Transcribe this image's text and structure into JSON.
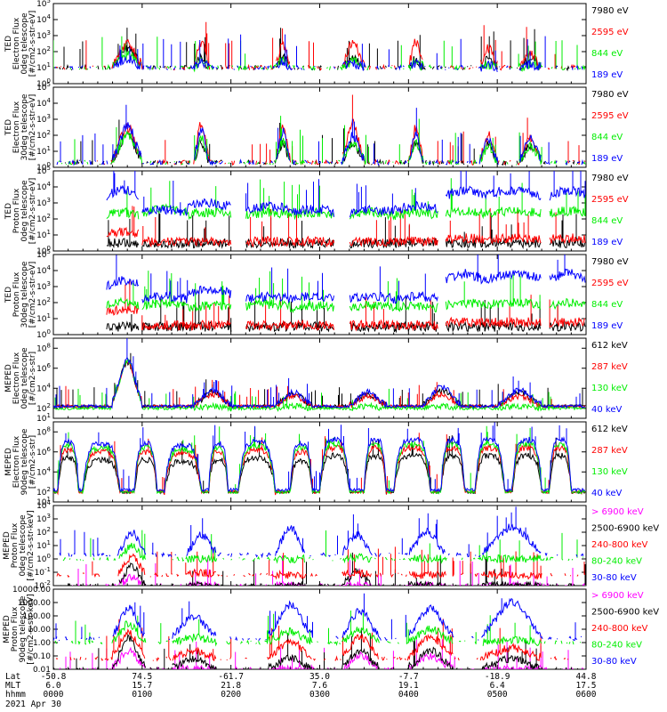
{
  "colors": {
    "black": "#000000",
    "red": "#ff0000",
    "green": "#00ee00",
    "blue": "#0000ff",
    "magenta": "#ff00ff"
  },
  "chart_data": [
    {
      "type": "line",
      "ylabel": [
        "TED",
        "Electron Flux",
        "0deg telescope",
        "[#/cm2-s-str-eV]"
      ],
      "yscale": "log",
      "ylim": [
        1,
        100000
      ],
      "yticks": [
        "10^0",
        "10^1",
        "10^2",
        "10^3",
        "10^4",
        "10^5"
      ],
      "legend": [
        {
          "label": "7980 eV",
          "color": "black"
        },
        {
          "label": "2595 eV",
          "color": "red"
        },
        {
          "label": "844 eV",
          "color": "green"
        },
        {
          "label": "189 eV",
          "color": "blue"
        }
      ],
      "profile": "ted_e",
      "series": [
        {
          "name": "7980 eV",
          "color": "black",
          "peak_log": [
            2.2,
            1.6,
            1.6,
            1.5,
            1.5,
            1.5,
            1.5,
            3.2
          ],
          "base_log": 1.0
        },
        {
          "name": "2595 eV",
          "color": "red",
          "peak_log": [
            2.5,
            2.6,
            2.4,
            2.6,
            2.6,
            2.2,
            1.8,
            3.8
          ],
          "base_log": 1.0
        },
        {
          "name": "844 eV",
          "color": "green",
          "peak_log": [
            1.8,
            1.5,
            1.5,
            1.4,
            1.4,
            1.2,
            1.2,
            2.6
          ],
          "base_log": 1.0
        },
        {
          "name": "189 eV",
          "color": "blue",
          "peak_log": [
            1.5,
            1.4,
            1.4,
            1.3,
            1.3,
            1.2,
            1.2,
            2.2
          ],
          "base_log": 1.0
        }
      ]
    },
    {
      "type": "line",
      "ylabel": [
        "TED",
        "Electron Flux",
        "30deg telescope",
        "[#/cm2-s-str-eV]"
      ],
      "yscale": "log",
      "ylim": [
        1,
        100000
      ],
      "yticks": [
        "10^0",
        "10^1",
        "10^2",
        "10^3",
        "10^4",
        "10^5"
      ],
      "legend": [
        {
          "label": "7980 eV",
          "color": "black"
        },
        {
          "label": "2595 eV",
          "color": "red"
        },
        {
          "label": "844 eV",
          "color": "green"
        },
        {
          "label": "189 eV",
          "color": "blue"
        }
      ],
      "profile": "ted_e",
      "series": [
        {
          "name": "7980 eV",
          "color": "black",
          "peak_log": [
            2.0,
            1.6,
            1.5,
            1.5,
            1.5,
            1.4,
            1.4,
            2.8
          ],
          "base_log": 0.3
        },
        {
          "name": "2595 eV",
          "color": "red",
          "peak_log": [
            2.5,
            2.8,
            2.6,
            2.7,
            2.5,
            2.0,
            1.8,
            3.5
          ],
          "base_log": 0.3
        },
        {
          "name": "844 eV",
          "color": "green",
          "peak_log": [
            2.0,
            1.8,
            1.7,
            1.6,
            1.6,
            1.3,
            1.3,
            2.6
          ],
          "base_log": 0.3
        },
        {
          "name": "189 eV",
          "color": "blue",
          "peak_log": [
            2.6,
            2.4,
            2.2,
            2.0,
            2.0,
            1.8,
            1.8,
            2.4
          ],
          "base_log": 0.3
        }
      ]
    },
    {
      "type": "line",
      "ylabel": [
        "TED",
        "Proton Flux",
        "0deg telescope",
        "[#/cm2-s-str-eV]"
      ],
      "yscale": "log",
      "ylim": [
        1,
        100000
      ],
      "yticks": [
        "10^0",
        "10^1",
        "10^2",
        "10^3",
        "10^4",
        "10^5"
      ],
      "legend": [
        {
          "label": "7980 eV",
          "color": "black"
        },
        {
          "label": "2595 eV",
          "color": "red"
        },
        {
          "label": "844 eV",
          "color": "green"
        },
        {
          "label": "189 eV",
          "color": "blue"
        }
      ],
      "profile": "ted_p",
      "series": [
        {
          "name": "7980 eV",
          "color": "black",
          "peak_log": [
            0.5,
            0.5,
            0.5,
            0.5,
            0.5,
            0.5,
            0.5,
            0.5
          ],
          "base_log": 0.3
        },
        {
          "name": "2595 eV",
          "color": "red",
          "peak_log": [
            1.2,
            0.6,
            0.6,
            0.6,
            0.6,
            0.6,
            0.6,
            0.8
          ],
          "base_log": 0.3
        },
        {
          "name": "844 eV",
          "color": "green",
          "peak_log": [
            2.4,
            2.6,
            2.4,
            2.4,
            2.4,
            2.4,
            2.4,
            2.5
          ],
          "base_log": 1.2
        },
        {
          "name": "189 eV",
          "color": "blue",
          "peak_log": [
            3.8,
            2.6,
            3.0,
            2.8,
            2.6,
            2.6,
            2.8,
            3.8
          ],
          "base_log": 1.2
        }
      ]
    },
    {
      "type": "line",
      "ylabel": [
        "TED",
        "Proton Flux",
        "30deg telescope",
        "[#/cm2-s-str-eV]"
      ],
      "yscale": "log",
      "ylim": [
        1,
        100000
      ],
      "yticks": [
        "10^0",
        "10^1",
        "10^2",
        "10^3",
        "10^4",
        "10^5"
      ],
      "legend": [
        {
          "label": "7980 eV",
          "color": "black"
        },
        {
          "label": "2595 eV",
          "color": "red"
        },
        {
          "label": "844 eV",
          "color": "green"
        },
        {
          "label": "189 eV",
          "color": "blue"
        }
      ],
      "profile": "ted_p",
      "series": [
        {
          "name": "7980 eV",
          "color": "black",
          "peak_log": [
            0.5,
            0.5,
            0.5,
            0.5,
            0.5,
            0.5,
            0.5,
            0.5
          ],
          "base_log": 0.3
        },
        {
          "name": "2595 eV",
          "color": "red",
          "peak_log": [
            1.6,
            0.6,
            0.6,
            0.6,
            0.6,
            0.6,
            0.6,
            0.8
          ],
          "base_log": 0.3
        },
        {
          "name": "844 eV",
          "color": "green",
          "peak_log": [
            2.0,
            2.0,
            1.8,
            1.9,
            1.8,
            1.8,
            1.8,
            2.0
          ],
          "base_log": 1.0
        },
        {
          "name": "189 eV",
          "color": "blue",
          "peak_log": [
            3.4,
            2.4,
            2.8,
            2.4,
            2.4,
            2.4,
            2.4,
            3.8
          ],
          "base_log": 1.0
        }
      ]
    },
    {
      "type": "line",
      "ylabel": [
        "MEPED",
        "Electron Flux",
        "0deg telescope",
        "[#/cm2-s-str]"
      ],
      "yscale": "log",
      "ylim": [
        10,
        1000000000
      ],
      "yticks": [
        "10^1",
        "10^2",
        "10^4",
        "10^6",
        "10^8"
      ],
      "legend": [
        {
          "label": "612 keV",
          "color": "black"
        },
        {
          "label": "287 keV",
          "color": "red"
        },
        {
          "label": "130 keV",
          "color": "green"
        },
        {
          "label": "40 keV",
          "color": "blue"
        }
      ],
      "profile": "mep_e0",
      "series": [
        {
          "name": "612 keV",
          "color": "black",
          "peak_log": [
            6.6,
            3.6,
            3.4,
            3.4,
            3.8,
            3.6,
            3.8,
            3.8
          ],
          "base_log": 2.2
        },
        {
          "name": "287 keV",
          "color": "red",
          "peak_log": [
            6.7,
            3.4,
            3.2,
            3.2,
            3.4,
            3.2,
            3.4,
            3.4
          ],
          "base_log": 2.2
        },
        {
          "name": "130 keV",
          "color": "green",
          "peak_log": [
            6.8,
            2.2,
            2.2,
            2.2,
            2.2,
            2.2,
            2.2,
            2.2
          ],
          "base_log": 2.0
        },
        {
          "name": "40 keV",
          "color": "blue",
          "peak_log": [
            6.9,
            3.8,
            3.6,
            3.6,
            4.2,
            3.8,
            4.0,
            5.0
          ],
          "base_log": 2.2
        }
      ]
    },
    {
      "type": "line",
      "ylabel": [
        "MEPED",
        "Electron Flux",
        "90deg telescope",
        "[#/cm2-s-str]"
      ],
      "yscale": "log",
      "ylim": [
        10,
        1000000000
      ],
      "yticks": [
        "10^1",
        "10^2",
        "10^4",
        "10^6",
        "10^8"
      ],
      "legend": [
        {
          "label": "612 keV",
          "color": "black"
        },
        {
          "label": "287 keV",
          "color": "red"
        },
        {
          "label": "130 keV",
          "color": "green"
        },
        {
          "label": "40 keV",
          "color": "blue"
        }
      ],
      "profile": "mep_e90",
      "series": [
        {
          "name": "612 keV",
          "color": "black",
          "peak_log": [
            5.4,
            5.2,
            5.2,
            5.0,
            5.2,
            5.4,
            5.0,
            5.6
          ],
          "base_log": 2.0
        },
        {
          "name": "287 keV",
          "color": "red",
          "peak_log": [
            6.2,
            6.0,
            6.0,
            5.8,
            6.0,
            6.2,
            6.0,
            6.4
          ],
          "base_log": 2.0
        },
        {
          "name": "130 keV",
          "color": "green",
          "peak_log": [
            6.6,
            6.4,
            6.4,
            6.2,
            6.4,
            6.6,
            6.4,
            6.8
          ],
          "base_log": 2.0
        },
        {
          "name": "40 keV",
          "color": "blue",
          "peak_log": [
            7.0,
            6.8,
            6.8,
            6.6,
            6.8,
            7.0,
            6.8,
            7.2
          ],
          "base_log": 2.2
        }
      ]
    },
    {
      "type": "line",
      "ylabel": [
        "MEPED",
        "Proton Flux",
        "0deg telescope",
        "[#/cm2-s-str-keV]"
      ],
      "yscale": "log",
      "ylim": [
        0.01,
        10000
      ],
      "yticks": [
        "10^-2",
        "10^-1",
        "10^0",
        "10^1",
        "10^2",
        "10^3",
        "10^4"
      ],
      "legend": [
        {
          "label": "> 6900 keV",
          "color": "magenta"
        },
        {
          "label": "2500-6900 keV",
          "color": "black"
        },
        {
          "label": "240-800 keV",
          "color": "red"
        },
        {
          "label": "80-240 keV",
          "color": "green"
        },
        {
          "label": "30-80 keV",
          "color": "blue"
        }
      ],
      "profile": "mep_p0",
      "series": [
        {
          "name": "> 6900 keV",
          "color": "magenta",
          "peak_log": [
            -1.4,
            -2,
            -2,
            -2,
            -2,
            -2,
            -1.4,
            -2
          ],
          "base_log": -2
        },
        {
          "name": "2500-6900 keV",
          "color": "black",
          "peak_log": [
            -0.5,
            -2,
            -2,
            -1.0,
            -2,
            -2,
            -0.8,
            -2
          ],
          "base_log": -2
        },
        {
          "name": "240-800 keV",
          "color": "red",
          "peak_log": [
            0.2,
            -1.0,
            -1.2,
            -1.0,
            -1.2,
            -1.2,
            -1.0,
            -1.0
          ],
          "base_log": -1.2
        },
        {
          "name": "80-240 keV",
          "color": "green",
          "peak_log": [
            0.9,
            0.0,
            0.0,
            0.1,
            0.0,
            0.0,
            0.4,
            0.6
          ],
          "base_log": 0.0
        },
        {
          "name": "30-80 keV",
          "color": "blue",
          "peak_log": [
            2.0,
            1.8,
            2.4,
            1.8,
            2.0,
            2.4,
            2.8,
            2.6
          ],
          "base_log": 0.3
        }
      ]
    },
    {
      "type": "line",
      "ylabel": [
        "MEPED",
        "Proton Flux",
        "90deg telescope",
        "[#/cm2-s-str-keV]"
      ],
      "yscale": "log",
      "ylim": [
        0.01,
        10000
      ],
      "yticks": [
        "0.01",
        "0.10",
        "1.00",
        "10.00",
        "100.00",
        "1000.00",
        "10000.00"
      ],
      "legend": [
        {
          "label": "> 6900 keV",
          "color": "magenta"
        },
        {
          "label": "2500-6900 keV",
          "color": "black"
        },
        {
          "label": "240-800 keV",
          "color": "red"
        },
        {
          "label": "80-240 keV",
          "color": "green"
        },
        {
          "label": "30-80 keV",
          "color": "blue"
        }
      ],
      "profile": "mep_p90",
      "series": [
        {
          "name": "> 6900 keV",
          "color": "magenta",
          "peak_log": [
            -0.6,
            -2,
            -2,
            -1.0,
            -1.0,
            -2,
            -0.8,
            -2
          ],
          "base_log": -2
        },
        {
          "name": "2500-6900 keV",
          "color": "black",
          "peak_log": [
            0.3,
            -1.2,
            -1.2,
            -0.6,
            -0.6,
            -1.2,
            -0.4,
            -1.0
          ],
          "base_log": -2
        },
        {
          "name": "240-800 keV",
          "color": "red",
          "peak_log": [
            0.8,
            -0.6,
            0.1,
            0.4,
            0.4,
            -0.4,
            0.6,
            0.2
          ],
          "base_log": -1.2
        },
        {
          "name": "80-240 keV",
          "color": "green",
          "peak_log": [
            1.4,
            0.4,
            0.8,
            1.0,
            1.0,
            0.2,
            1.2,
            1.0
          ],
          "base_log": 0.0
        },
        {
          "name": "30-80 keV",
          "color": "blue",
          "peak_log": [
            2.6,
            2.0,
            2.8,
            2.4,
            2.6,
            3.0,
            3.2,
            3.2
          ],
          "base_log": 0.3
        }
      ]
    }
  ],
  "x_axis": {
    "row_labels": [
      "Lat",
      "MLT",
      "hhmm"
    ],
    "ticks": [
      {
        "Lat": "-50.8",
        "MLT": "6.0",
        "hhmm": "0000"
      },
      {
        "Lat": "74.5",
        "MLT": "15.7",
        "hhmm": "0100"
      },
      {
        "Lat": "-61.7",
        "MLT": "21.8",
        "hhmm": "0200"
      },
      {
        "Lat": "35.0",
        "MLT": "7.6",
        "hhmm": "0300"
      },
      {
        "Lat": "-7.7",
        "MLT": "19.1",
        "hhmm": "0400"
      },
      {
        "Lat": "-18.9",
        "MLT": "6.4",
        "hhmm": "0500"
      },
      {
        "Lat": "44.8",
        "MLT": "17.5",
        "hhmm": "0600"
      }
    ],
    "date": "2021 Apr 30",
    "xlim_minutes": [
      0,
      360
    ]
  }
}
